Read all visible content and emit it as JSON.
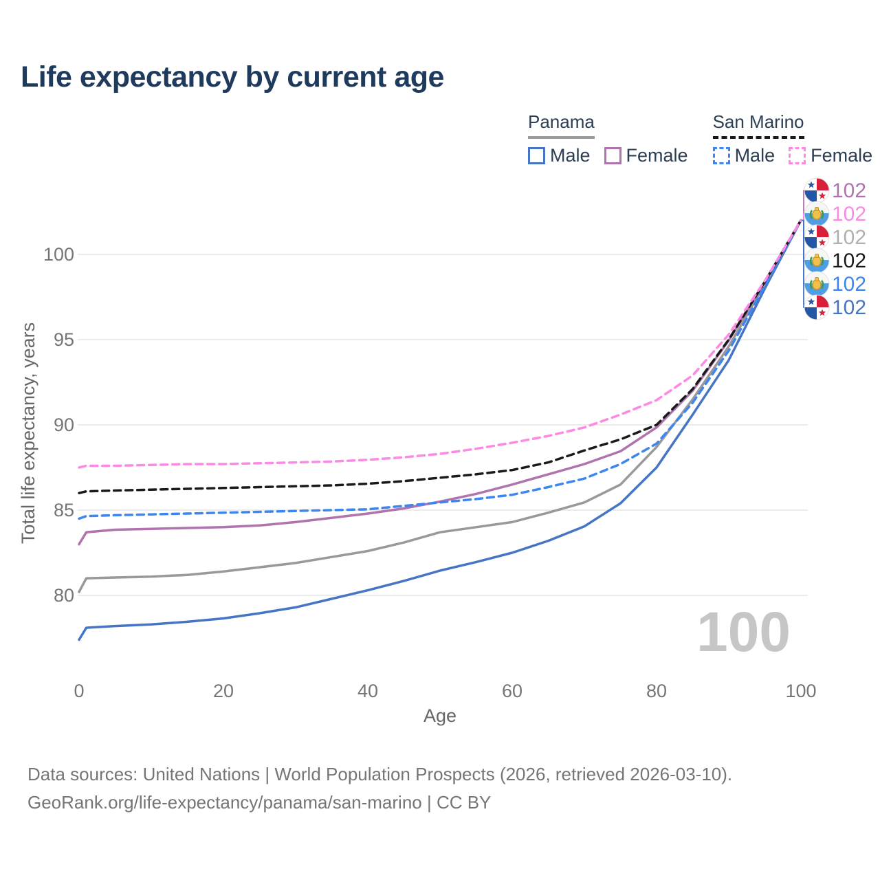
{
  "title": "Life expectancy by current age",
  "legend": {
    "groups": [
      {
        "name": "Panama",
        "line_style": "solid",
        "line_color": "#9a9a9a",
        "items": [
          {
            "label": "Male",
            "style": "solid",
            "color": "#4575c4"
          },
          {
            "label": "Female",
            "style": "solid",
            "color": "#b073ae"
          }
        ]
      },
      {
        "name": "San Marino",
        "line_style": "dashed",
        "line_color": "#1a1a1a",
        "items": [
          {
            "label": "Male",
            "style": "dashed",
            "color": "#3d85f0"
          },
          {
            "label": "Female",
            "style": "dashed",
            "color": "#fc8ae4"
          }
        ]
      }
    ]
  },
  "chart_data": {
    "type": "line",
    "title": "Life expectancy by current age",
    "xlabel": "Age",
    "ylabel": "Total life expectancy, years",
    "xlim": [
      0,
      100
    ],
    "ylim": [
      77,
      103
    ],
    "xticks": [
      0,
      20,
      40,
      60,
      80,
      100
    ],
    "yticks": [
      80,
      85,
      90,
      95,
      100
    ],
    "grid": "horizontal",
    "legend_position": "top-right",
    "current_age_watermark": "100",
    "x": [
      0,
      1,
      5,
      10,
      15,
      20,
      25,
      30,
      35,
      40,
      45,
      50,
      55,
      60,
      65,
      70,
      75,
      80,
      85,
      90,
      95,
      100
    ],
    "series": [
      {
        "name": "Panama Male",
        "country": "panama",
        "dash": false,
        "color": "#4575c4",
        "end_label": "102",
        "values": [
          77.4,
          78.1,
          78.2,
          78.3,
          78.45,
          78.65,
          78.95,
          79.3,
          79.8,
          80.3,
          80.85,
          81.45,
          81.95,
          82.5,
          83.2,
          84.05,
          85.4,
          87.5,
          90.6,
          93.8,
          98.0,
          102
        ]
      },
      {
        "name": "Panama Total",
        "country": "panama",
        "dash": false,
        "color": "#999999",
        "end_label": "102",
        "values": [
          80.2,
          81.0,
          81.05,
          81.1,
          81.2,
          81.4,
          81.65,
          81.9,
          82.25,
          82.6,
          83.1,
          83.7,
          84.0,
          84.3,
          84.85,
          85.45,
          86.5,
          88.7,
          91.5,
          94.6,
          98.25,
          102
        ]
      },
      {
        "name": "Panama Female",
        "country": "panama",
        "dash": false,
        "color": "#b073ae",
        "end_label": "102",
        "values": [
          83.0,
          83.7,
          83.85,
          83.9,
          83.95,
          84.0,
          84.1,
          84.3,
          84.55,
          84.8,
          85.1,
          85.5,
          85.95,
          86.5,
          87.1,
          87.7,
          88.45,
          89.85,
          92.0,
          94.95,
          98.4,
          102
        ]
      },
      {
        "name": "San Marino Male",
        "country": "san-marino",
        "dash": true,
        "color": "#3d85f0",
        "end_label": "102",
        "values": [
          84.5,
          84.65,
          84.7,
          84.75,
          84.8,
          84.85,
          84.9,
          84.95,
          85.0,
          85.05,
          85.25,
          85.45,
          85.65,
          85.9,
          86.35,
          86.85,
          87.7,
          88.9,
          91.3,
          94.35,
          98.15,
          102
        ]
      },
      {
        "name": "San Marino Total",
        "country": "san-marino",
        "dash": true,
        "color": "#1a1a1a",
        "end_label": "102",
        "values": [
          86.0,
          86.1,
          86.15,
          86.2,
          86.25,
          86.3,
          86.35,
          86.4,
          86.45,
          86.55,
          86.7,
          86.9,
          87.1,
          87.35,
          87.8,
          88.5,
          89.15,
          90.0,
          92.1,
          95.0,
          98.4,
          102
        ]
      },
      {
        "name": "San Marino Female",
        "country": "san-marino",
        "dash": true,
        "color": "#fc8ae4",
        "end_label": "102",
        "values": [
          87.5,
          87.6,
          87.6,
          87.65,
          87.7,
          87.7,
          87.75,
          87.8,
          87.85,
          87.95,
          88.1,
          88.3,
          88.6,
          88.95,
          89.35,
          89.85,
          90.6,
          91.45,
          92.9,
          95.3,
          98.45,
          102
        ]
      }
    ],
    "end_label_order": [
      "Panama Female",
      "San Marino Female",
      "Panama Total",
      "San Marino Total",
      "San Marino Male",
      "Panama Male"
    ],
    "end_label_text_colors": {
      "Panama Female": "#b073ae",
      "San Marino Female": "#fc8ae4",
      "Panama Total": "#b0b0b0",
      "San Marino Total": "#1a1a1a",
      "San Marino Male": "#3d85f0",
      "Panama Male": "#4575c4"
    }
  },
  "footer": {
    "line1": "Data sources: United Nations | World Population Prospects (2026, retrieved 2026-03-10).",
    "line2": "GeoRank.org/life-expectancy/panama/san-marino | CC BY"
  }
}
